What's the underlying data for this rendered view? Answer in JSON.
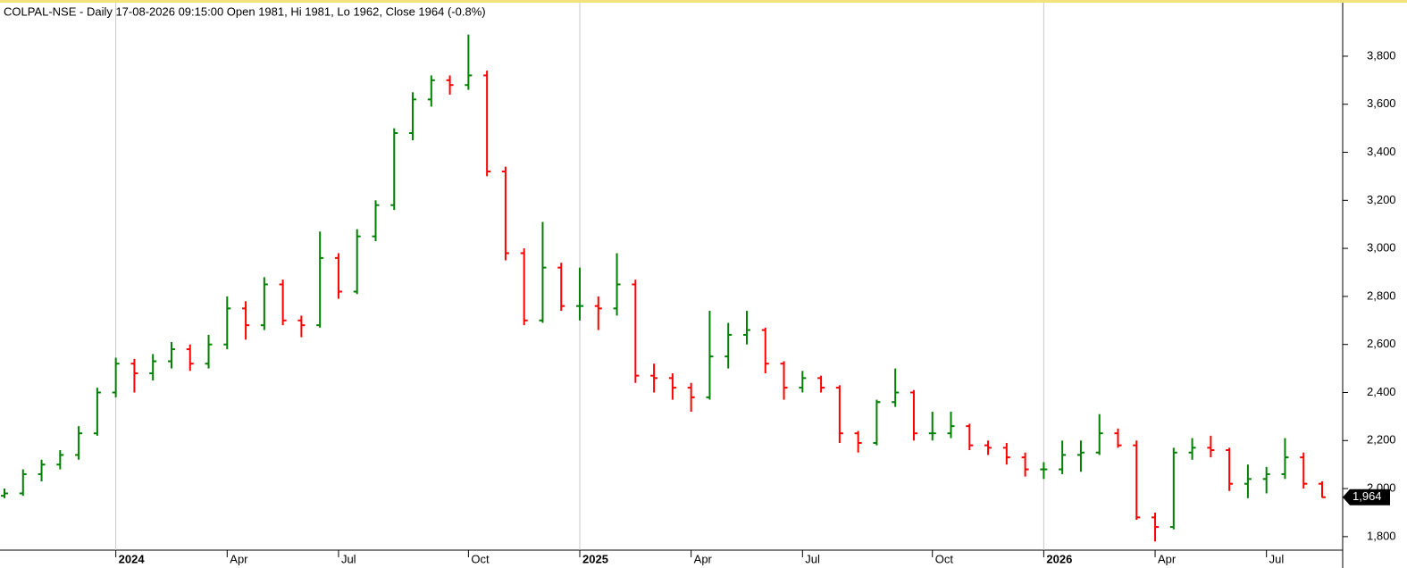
{
  "chart_data": {
    "type": "ohlc",
    "title": "COLPAL-NSE - Daily 17-08-2026 09:15:00 Open 1981, Hi 1981, Lo 1962, Close 1964 (-0.8%)",
    "categories": [
      null,
      null,
      null,
      null,
      null,
      null,
      "2024",
      null,
      null,
      null,
      null,
      null,
      "Apr",
      null,
      null,
      null,
      null,
      null,
      "Jul",
      null,
      null,
      null,
      null,
      null,
      null,
      "Oct",
      null,
      null,
      null,
      null,
      null,
      "2025",
      null,
      null,
      null,
      null,
      null,
      "Apr",
      null,
      null,
      null,
      null,
      null,
      "Jul",
      null,
      null,
      null,
      null,
      null,
      null,
      "Oct",
      null,
      null,
      null,
      null,
      null,
      "2026",
      null,
      null,
      null,
      null,
      null,
      "Apr",
      null,
      null,
      null,
      null,
      null,
      "Jul",
      null,
      null,
      null
    ],
    "open": [
      1970,
      1980,
      2060,
      2100,
      2140,
      2230,
      2400,
      2520,
      2480,
      2530,
      2580,
      2520,
      2600,
      2750,
      2680,
      2850,
      2700,
      2680,
      2960,
      2820,
      3050,
      3180,
      3480,
      3620,
      3700,
      3680,
      3720,
      3320,
      2980,
      2700,
      2920,
      2760,
      2760,
      2750,
      2850,
      2470,
      2460,
      2420,
      2380,
      2550,
      2640,
      2660,
      2520,
      2420,
      2460,
      2420,
      2230,
      2190,
      2360,
      2400,
      2230,
      2230,
      2260,
      2180,
      2170,
      2130,
      2080,
      2080,
      2140,
      2150,
      2230,
      2180,
      1880,
      1840,
      2150,
      2170,
      2160,
      2020,
      2040,
      2060,
      2130,
      2020
    ],
    "high": [
      2000,
      2080,
      2120,
      2160,
      2260,
      2420,
      2545,
      2540,
      2560,
      2610,
      2600,
      2640,
      2800,
      2780,
      2880,
      2870,
      2720,
      3070,
      2980,
      3080,
      3200,
      3500,
      3650,
      3720,
      3720,
      3890,
      3740,
      3340,
      3000,
      3110,
      2940,
      2920,
      2800,
      2980,
      2870,
      2520,
      2480,
      2440,
      2740,
      2690,
      2740,
      2670,
      2530,
      2490,
      2470,
      2430,
      2240,
      2370,
      2500,
      2410,
      2320,
      2320,
      2270,
      2200,
      2190,
      2150,
      2110,
      2200,
      2200,
      2310,
      2250,
      2200,
      1900,
      2170,
      2210,
      2220,
      2170,
      2100,
      2090,
      2210,
      2150,
      2030
    ],
    "low": [
      1960,
      1970,
      2030,
      2080,
      2120,
      2220,
      2380,
      2400,
      2450,
      2500,
      2490,
      2500,
      2580,
      2620,
      2660,
      2680,
      2630,
      2670,
      2790,
      2810,
      3030,
      3160,
      3450,
      3590,
      3640,
      3660,
      3300,
      2950,
      2680,
      2690,
      2740,
      2700,
      2660,
      2720,
      2440,
      2400,
      2370,
      2320,
      2370,
      2500,
      2600,
      2480,
      2370,
      2400,
      2400,
      2190,
      2150,
      2180,
      2340,
      2200,
      2200,
      2210,
      2160,
      2140,
      2100,
      2050,
      2040,
      2060,
      2070,
      2140,
      2170,
      1870,
      1780,
      1830,
      2120,
      2130,
      1990,
      1960,
      1980,
      2040,
      2000,
      1962
    ],
    "close": [
      1980,
      2060,
      2100,
      2140,
      2230,
      2400,
      2520,
      2480,
      2530,
      2580,
      2520,
      2600,
      2750,
      2680,
      2850,
      2700,
      2680,
      2960,
      2820,
      3050,
      3180,
      3480,
      3620,
      3700,
      3680,
      3720,
      3320,
      2980,
      2700,
      2920,
      2760,
      2760,
      2750,
      2850,
      2470,
      2460,
      2420,
      2380,
      2550,
      2640,
      2660,
      2520,
      2420,
      2460,
      2420,
      2230,
      2190,
      2360,
      2400,
      2230,
      2230,
      2260,
      2180,
      2170,
      2130,
      2080,
      2080,
      2140,
      2150,
      2230,
      2180,
      1880,
      1840,
      2150,
      2170,
      2160,
      2020,
      2040,
      2060,
      2130,
      2020,
      1964
    ],
    "up_color": "#008000",
    "down_color": "#ff0000",
    "ylim": [
      1740,
      4034
    ],
    "yticks": [
      {
        "value": 1800,
        "label": "1,800"
      },
      {
        "value": 2000,
        "label": "2,000"
      },
      {
        "value": 2200,
        "label": "2,200"
      },
      {
        "value": 2400,
        "label": "2,400"
      },
      {
        "value": 2600,
        "label": "2,600"
      },
      {
        "value": 2800,
        "label": "2,800"
      },
      {
        "value": 3000,
        "label": "3,000"
      },
      {
        "value": 3200,
        "label": "3,200"
      },
      {
        "value": 3400,
        "label": "3,400"
      },
      {
        "value": 3600,
        "label": "3,600"
      },
      {
        "value": 3800,
        "label": "3,800"
      }
    ],
    "last_value": {
      "value": 1964,
      "label": "1,964"
    }
  }
}
